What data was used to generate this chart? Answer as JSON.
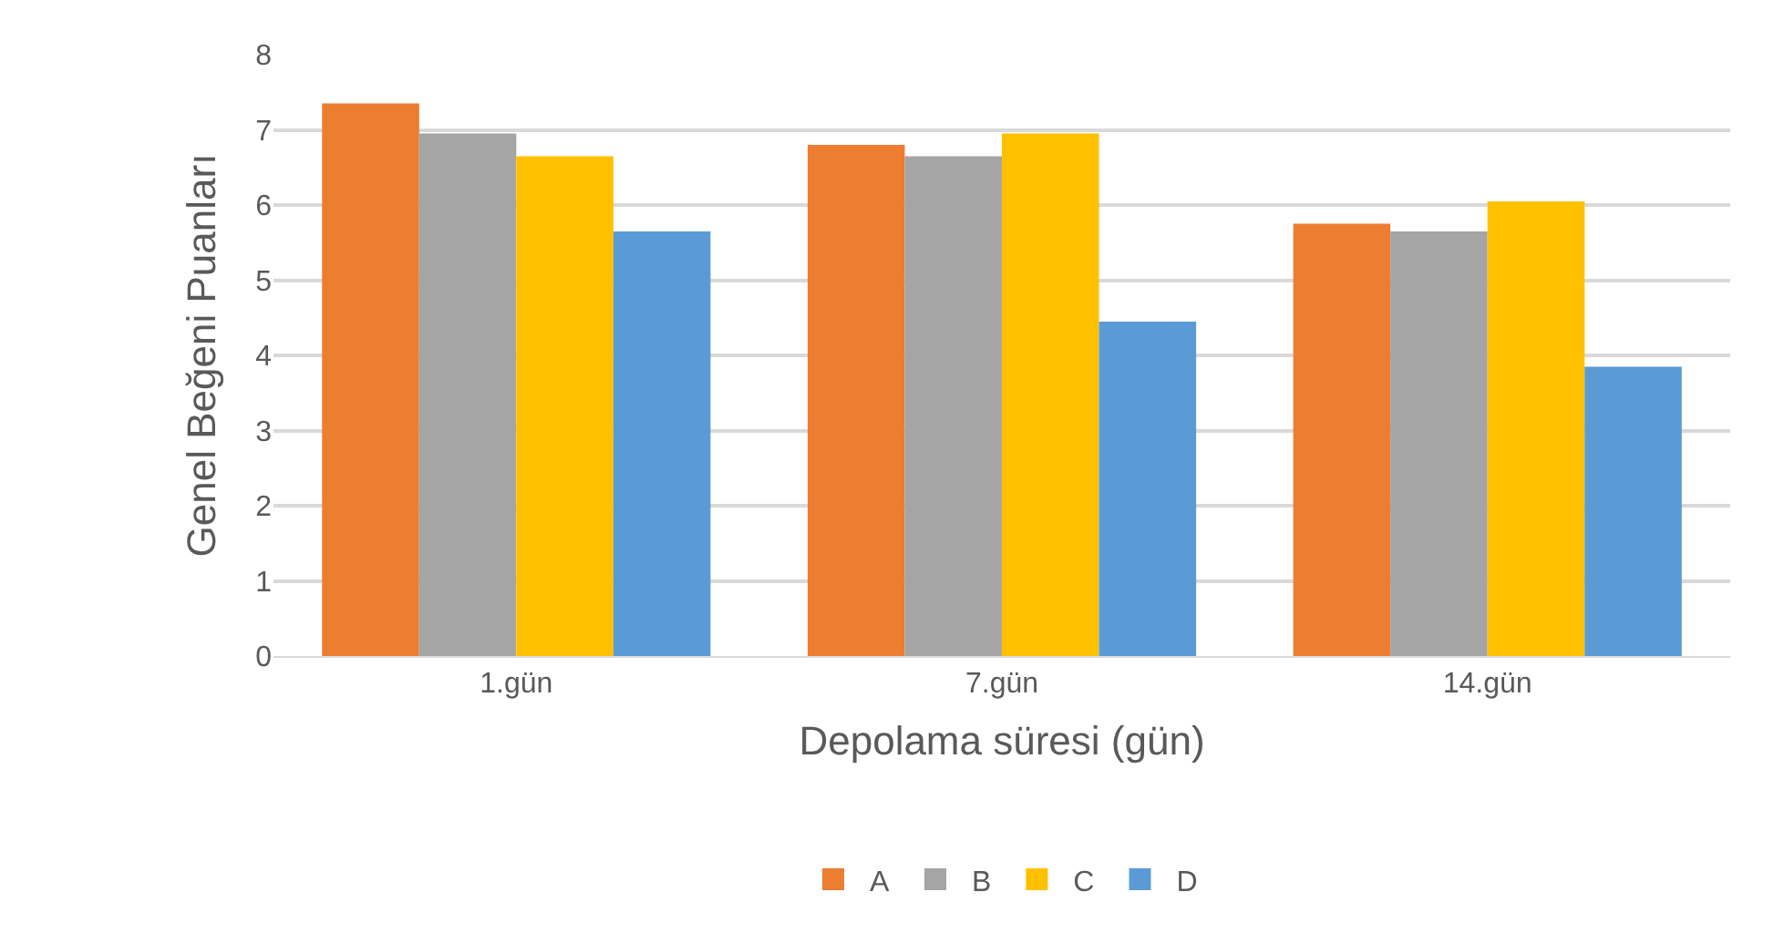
{
  "chart_data": {
    "type": "bar",
    "xlabel": "Depolama süresi (gün)",
    "ylabel": "Genel Beğeni Puanları",
    "categories": [
      "1.gün",
      "7.gün",
      "14.gün"
    ],
    "series": [
      {
        "name": "A",
        "color": "#ed7d31",
        "values": [
          7.35,
          6.8,
          5.75
        ]
      },
      {
        "name": "B",
        "color": "#a5a5a5",
        "values": [
          6.95,
          6.65,
          5.65
        ]
      },
      {
        "name": "C",
        "color": "#ffc000",
        "values": [
          6.65,
          6.95,
          6.05
        ]
      },
      {
        "name": "D",
        "color": "#5b9bd5",
        "values": [
          5.65,
          4.45,
          3.85
        ]
      }
    ],
    "ylim": [
      0,
      8
    ],
    "yticks": [
      0,
      1,
      2,
      3,
      4,
      5,
      6,
      7,
      8
    ],
    "grid": "y",
    "legend": "bottom"
  }
}
